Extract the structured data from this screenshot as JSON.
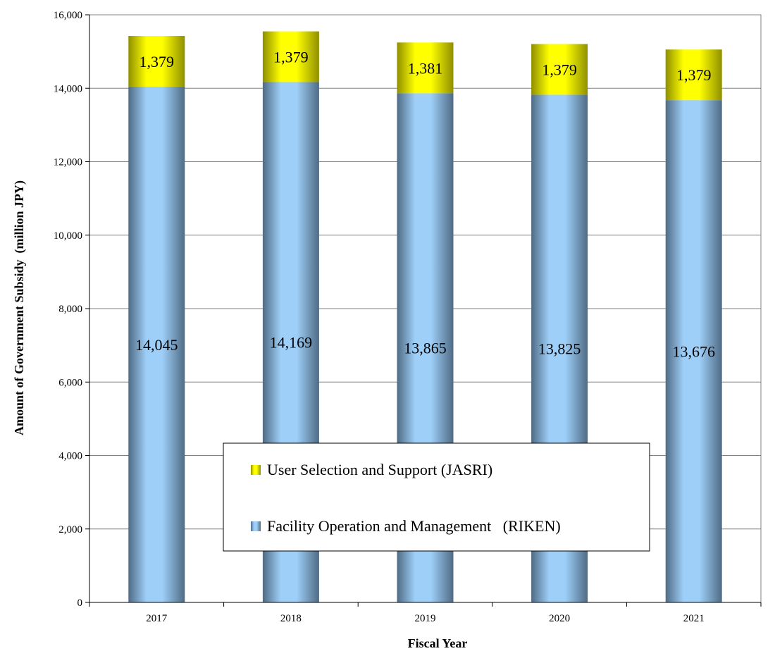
{
  "chart_data": {
    "type": "bar",
    "stacked": true,
    "categories": [
      "2017",
      "2018",
      "2019",
      "2020",
      "2021"
    ],
    "series": [
      {
        "name": "Facility Operation and Management   (RIKEN)",
        "values": [
          14045,
          14169,
          13865,
          13825,
          13676
        ],
        "labels": [
          "14,045",
          "14,169",
          "13,865",
          "13,825",
          "13,676"
        ],
        "color": "#9ecff8",
        "shade": "#4f6b85"
      },
      {
        "name": "User Selection and Support (JASRI)",
        "values": [
          1379,
          1379,
          1381,
          1379,
          1379
        ],
        "labels": [
          "1,379",
          "1,379",
          "1,381",
          "1,379",
          "1,379"
        ],
        "color": "#ffff00",
        "shade": "#8f8f00"
      }
    ],
    "xlabel": "Fiscal Year",
    "ylabel": "Amount of Government Subsidy  (million JPY)",
    "ylim": [
      0,
      16000
    ],
    "yticks": [
      0,
      2000,
      4000,
      6000,
      8000,
      10000,
      12000,
      14000,
      16000
    ],
    "ytick_labels": [
      "0",
      "2,000",
      "4,000",
      "6,000",
      "8,000",
      "10,000",
      "12,000",
      "14,000",
      "16,000"
    ],
    "grid": true,
    "legend_placement": "lower-center",
    "legend_order": [
      1,
      0
    ]
  }
}
